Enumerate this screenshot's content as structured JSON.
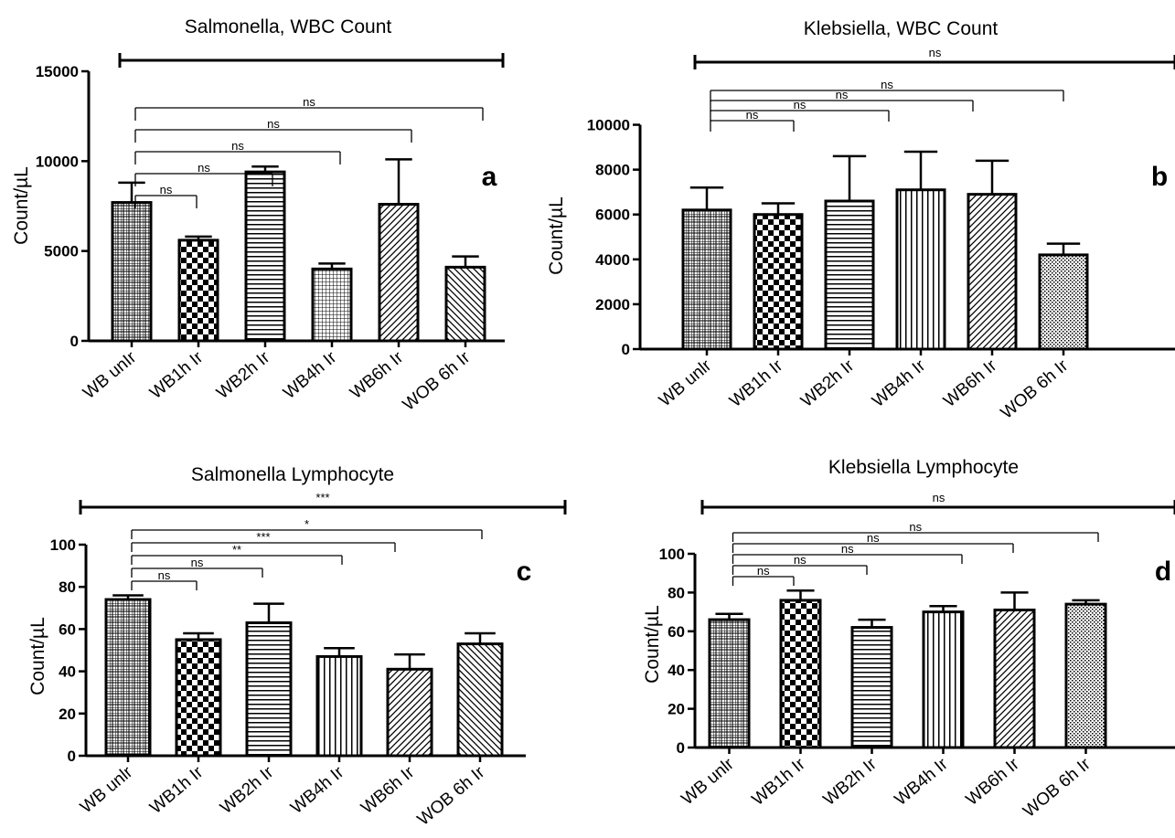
{
  "figure": {
    "panels": [
      {
        "id": "a",
        "letter": "a"
      },
      {
        "id": "b",
        "letter": "b"
      },
      {
        "id": "c",
        "letter": "c"
      },
      {
        "id": "d",
        "letter": "d"
      }
    ]
  },
  "chart_data": [
    {
      "type": "bar",
      "title": "Salmonella, WBC Count",
      "ylabel": "Count/µL",
      "xlabel": "",
      "ylim": [
        0,
        15000
      ],
      "yticks": [
        0,
        5000,
        10000,
        15000
      ],
      "categories": [
        "WB unIr",
        "WB1h Ir",
        "WB2h Ir",
        "WB4h Ir",
        "WB6h Ir",
        "WOB 6h Ir"
      ],
      "values": [
        7700,
        5600,
        9400,
        4000,
        7600,
        4100
      ],
      "errors": [
        1100,
        200,
        300,
        300,
        2500,
        600
      ],
      "patterns": [
        "grid",
        "checker",
        "hlines",
        "smallgrid",
        "diag",
        "backdiag"
      ],
      "overall_annotation": "",
      "comparisons": [
        {
          "to": 1,
          "label": "ns"
        },
        {
          "to": 2,
          "label": "ns"
        },
        {
          "to": 3,
          "label": "ns"
        },
        {
          "to": 4,
          "label": "ns"
        },
        {
          "to": 5,
          "label": "ns"
        }
      ]
    },
    {
      "type": "bar",
      "title": "Klebsiella, WBC Count",
      "ylabel": "Count/µL",
      "xlabel": "",
      "ylim": [
        0,
        11000
      ],
      "yticks": [
        0,
        2000,
        4000,
        6000,
        8000,
        10000
      ],
      "categories": [
        "WB unlr",
        "WB1h Ir",
        "WB2h Ir",
        "WB4h Ir",
        "WB6h Ir",
        "WOB 6h Ir"
      ],
      "values": [
        6200,
        6000,
        6600,
        7100,
        6900,
        4200
      ],
      "errors": [
        1000,
        500,
        2000,
        1700,
        1500,
        500
      ],
      "patterns": [
        "grid",
        "checker",
        "hlines",
        "vlines",
        "diag",
        "dots"
      ],
      "overall_annotation": "ns",
      "comparisons": [
        {
          "to": 1,
          "label": "ns"
        },
        {
          "to": 2,
          "label": "ns"
        },
        {
          "to": 3,
          "label": "ns"
        },
        {
          "to": 4,
          "label": "ns"
        }
      ]
    },
    {
      "type": "bar",
      "title": "Salmonella  Lymphocyte",
      "ylabel": "Count/µL",
      "xlabel": "",
      "ylim": [
        0,
        100
      ],
      "yticks": [
        0,
        20,
        40,
        60,
        80,
        100
      ],
      "categories": [
        "WB unlr",
        "WB1h Ir",
        "WB2h Ir",
        "WB4h Ir",
        "WB6h Ir",
        "WOB 6h Ir"
      ],
      "values": [
        74,
        55,
        63,
        47,
        41,
        53
      ],
      "errors": [
        2,
        3,
        9,
        4,
        7,
        5
      ],
      "patterns": [
        "grid",
        "checker",
        "hlines",
        "vlines",
        "diag",
        "backdiag"
      ],
      "overall_annotation": "***",
      "comparisons": [
        {
          "to": 1,
          "label": "ns"
        },
        {
          "to": 2,
          "label": "ns"
        },
        {
          "to": 3,
          "label": "**"
        },
        {
          "to": 4,
          "label": "***"
        },
        {
          "to": 5,
          "label": "*"
        }
      ]
    },
    {
      "type": "bar",
      "title": "Klebsiella Lymphocyte",
      "ylabel": "Count/µL",
      "xlabel": "",
      "ylim": [
        0,
        100
      ],
      "yticks": [
        0,
        20,
        40,
        60,
        80,
        100
      ],
      "categories": [
        "WB unlr",
        "WB1h Ir",
        "WB2h Ir",
        "WB4h Ir",
        "WB6h Ir",
        "WOB 6h Ir"
      ],
      "values": [
        66,
        76,
        62,
        70,
        71,
        74
      ],
      "errors": [
        3,
        5,
        4,
        3,
        9,
        2
      ],
      "patterns": [
        "grid",
        "checker",
        "hlines",
        "vlines",
        "diag",
        "dots"
      ],
      "overall_annotation": "ns",
      "comparisons": [
        {
          "to": 1,
          "label": "ns"
        },
        {
          "to": 2,
          "label": "ns"
        },
        {
          "to": 3,
          "label": "ns"
        },
        {
          "to": 4,
          "label": "ns"
        },
        {
          "to": 5,
          "label": "ns"
        }
      ]
    }
  ]
}
